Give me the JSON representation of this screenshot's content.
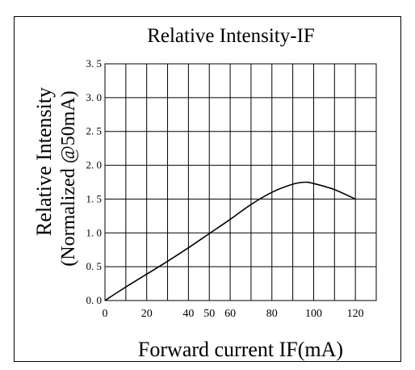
{
  "chart_data": {
    "type": "line",
    "title": "Relative Intensity-IF",
    "xlabel": "Forward current IF(mA)",
    "ylabel_line1": "Relative  Intensity",
    "ylabel_line2": "(Normalized @50mA)",
    "xlim": [
      0,
      130
    ],
    "ylim": [
      0,
      3.5
    ],
    "x_ticks": [
      {
        "value": 0,
        "label": "0"
      },
      {
        "value": 20,
        "label": "20"
      },
      {
        "value": 40,
        "label": "40"
      },
      {
        "value": 50,
        "label": "50"
      },
      {
        "value": 60,
        "label": "60"
      },
      {
        "value": 80,
        "label": "80"
      },
      {
        "value": 100,
        "label": "100"
      },
      {
        "value": 120,
        "label": "120"
      }
    ],
    "y_ticks": [
      {
        "value": 0.0,
        "label": "0. 0"
      },
      {
        "value": 0.5,
        "label": "0. 5"
      },
      {
        "value": 1.0,
        "label": "1. 0"
      },
      {
        "value": 1.5,
        "label": "1. 5"
      },
      {
        "value": 2.0,
        "label": "2. 0"
      },
      {
        "value": 2.5,
        "label": "2. 5"
      },
      {
        "value": 3.0,
        "label": "3. 0"
      },
      {
        "value": 3.5,
        "label": "3. 5"
      }
    ],
    "grid": true,
    "grid_x_step": 10,
    "grid_y_step": 0.5,
    "series": [
      {
        "x": [
          0,
          10,
          20,
          30,
          40,
          50,
          60,
          70,
          80,
          90,
          96,
          100,
          110,
          120
        ],
        "y": [
          0.0,
          0.2,
          0.39,
          0.58,
          0.78,
          0.99,
          1.2,
          1.42,
          1.6,
          1.72,
          1.75,
          1.73,
          1.64,
          1.5
        ]
      }
    ],
    "colors": {
      "line": "#000000",
      "grid": "#000000"
    }
  }
}
